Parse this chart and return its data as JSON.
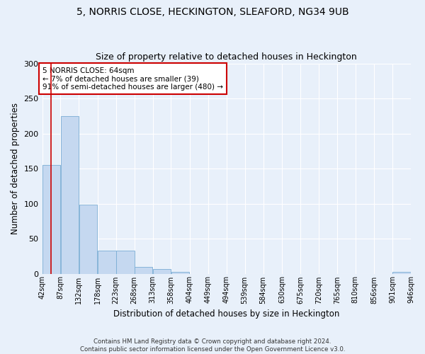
{
  "title": "5, NORRIS CLOSE, HECKINGTON, SLEAFORD, NG34 9UB",
  "subtitle": "Size of property relative to detached houses in Heckington",
  "xlabel": "Distribution of detached houses by size in Heckington",
  "ylabel": "Number of detached properties",
  "bar_color": "#c5d8f0",
  "bar_edge_color": "#7aadd4",
  "background_color": "#e8f0fa",
  "fig_background_color": "#e8f0fa",
  "grid_color": "#ffffff",
  "property_line_color": "#cc0000",
  "annotation_box_color": "#cc0000",
  "bins": [
    42,
    87,
    132,
    178,
    223,
    268,
    313,
    358,
    404,
    449,
    494,
    539,
    584,
    630,
    675,
    720,
    765,
    810,
    856,
    901,
    946
  ],
  "bar_heights": [
    155,
    225,
    99,
    33,
    33,
    10,
    7,
    3,
    0,
    0,
    0,
    0,
    0,
    0,
    0,
    0,
    0,
    0,
    0,
    3
  ],
  "property_size": 64,
  "annotation_line1": "5 NORRIS CLOSE: 64sqm",
  "annotation_line2": "← 7% of detached houses are smaller (39)",
  "annotation_line3": "91% of semi-detached houses are larger (480) →",
  "ylim": [
    0,
    300
  ],
  "yticks": [
    0,
    50,
    100,
    150,
    200,
    250,
    300
  ],
  "footer_text": "Contains HM Land Registry data © Crown copyright and database right 2024.\nContains public sector information licensed under the Open Government Licence v3.0.",
  "tick_labels": [
    "42sqm",
    "87sqm",
    "132sqm",
    "178sqm",
    "223sqm",
    "268sqm",
    "313sqm",
    "358sqm",
    "404sqm",
    "449sqm",
    "494sqm",
    "539sqm",
    "584sqm",
    "630sqm",
    "675sqm",
    "720sqm",
    "765sqm",
    "810sqm",
    "856sqm",
    "901sqm",
    "946sqm"
  ]
}
